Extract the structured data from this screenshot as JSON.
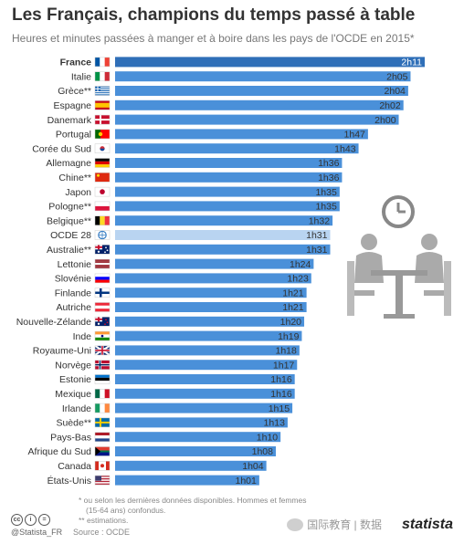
{
  "title": "Les Français, champions du temps passé à table",
  "subtitle": "Heures et minutes passées à manger et à boire dans les pays de l'OCDE en 2015*",
  "chart_data": {
    "type": "bar",
    "orientation": "horizontal",
    "unit": "minutes",
    "categories": [
      "France",
      "Italie",
      "Grèce**",
      "Espagne",
      "Danemark",
      "Portugal",
      "Corée du Sud",
      "Allemagne",
      "Chine**",
      "Japon",
      "Pologne**",
      "Belgique**",
      "OCDE 28",
      "Australie**",
      "Lettonie",
      "Slovénie",
      "Finlande",
      "Autriche",
      "Nouvelle-Zélande",
      "Inde",
      "Royaume-Uni",
      "Norvège",
      "Estonie",
      "Mexique",
      "Irlande",
      "Suède**",
      "Pays-Bas",
      "Afrique du Sud",
      "Canada",
      "États-Unis"
    ],
    "values": [
      131,
      125,
      124,
      122,
      120,
      107,
      103,
      96,
      96,
      95,
      95,
      92,
      91,
      91,
      84,
      83,
      81,
      81,
      80,
      79,
      78,
      77,
      76,
      76,
      75,
      73,
      70,
      68,
      64,
      61
    ],
    "value_labels": [
      "2h11",
      "2h05",
      "2h04",
      "2h02",
      "2h00",
      "1h47",
      "1h43",
      "1h36",
      "1h36",
      "1h35",
      "1h35",
      "1h32",
      "1h31",
      "1h31",
      "1h24",
      "1h23",
      "1h21",
      "1h21",
      "1h20",
      "1h19",
      "1h18",
      "1h17",
      "1h16",
      "1h16",
      "1h15",
      "1h13",
      "1h10",
      "1h08",
      "1h04",
      "1h01"
    ],
    "highlight": {
      "France": "bold",
      "OCDE 28": "light-bar"
    },
    "colors": {
      "bar": "#4a90d9",
      "bar_highlight": "#2f6fb8",
      "bar_average": "#b9d4f1"
    }
  },
  "flags": [
    "fr",
    "it",
    "gr",
    "es",
    "dk",
    "pt",
    "kr",
    "de",
    "cn",
    "jp",
    "pl",
    "be",
    "oecd",
    "au",
    "lv",
    "si",
    "fi",
    "at",
    "nz",
    "in",
    "uk",
    "no",
    "ee",
    "mx",
    "ie",
    "se",
    "nl",
    "za",
    "ca",
    "us"
  ],
  "notes": {
    "line1": "* ou selon les dernières données disponibles. Hommes et femmes",
    "line2": "(15-64 ans) confondus.",
    "line3": "** estimations."
  },
  "footer": {
    "handle": "@Statista_FR",
    "source": "Source : OCDE",
    "brand": "statista",
    "watermark": "国际教育 | 数据",
    "cc_icons": [
      "cc",
      "i",
      "="
    ]
  }
}
